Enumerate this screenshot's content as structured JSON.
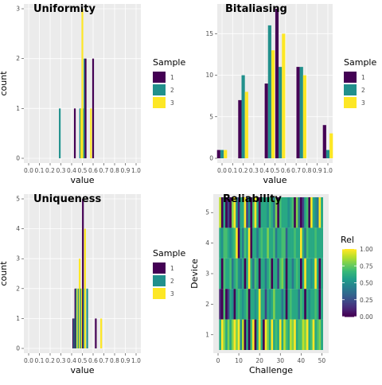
{
  "colors": {
    "panel_bg": "#ebebeb",
    "grid_major": "#ffffff",
    "grid_minor": "#f5f5f5",
    "axis_text": "#4d4d4d",
    "title_text": "#000000",
    "sample_1": "#440154",
    "sample_2": "#21908c",
    "sample_3": "#fde725"
  },
  "chart_data": [
    {
      "id": "uniformity",
      "type": "bar",
      "title": "Uniformity",
      "xlabel": "value",
      "ylabel": "count",
      "xlim": [
        0,
        1
      ],
      "ylim": [
        0,
        3
      ],
      "xticks": [
        "0.0",
        "0.1",
        "0.2",
        "0.3",
        "0.4",
        "0.5",
        "0.6",
        "0.7",
        "0.8",
        "0.9",
        "1.0"
      ],
      "yticks": [
        "0",
        "1",
        "2",
        "3"
      ],
      "bin_width": 0.0333,
      "legend": {
        "title": "Sample",
        "items": [
          "1",
          "2",
          "3"
        ]
      },
      "bars": [
        {
          "sample": 2,
          "x": 0.29,
          "count": 1
        },
        {
          "sample": 1,
          "x": 0.43,
          "count": 1
        },
        {
          "sample": 2,
          "x": 0.48,
          "count": 1
        },
        {
          "sample": 3,
          "x": 0.49,
          "count": 1
        },
        {
          "sample": 2,
          "x": 0.51,
          "count": 1
        },
        {
          "sample": 3,
          "x": 0.5,
          "count": 3
        },
        {
          "sample": 2,
          "x": 0.52,
          "count": 2
        },
        {
          "sample": 1,
          "x": 0.53,
          "count": 2
        },
        {
          "sample": 3,
          "x": 0.58,
          "count": 1
        },
        {
          "sample": 1,
          "x": 0.6,
          "count": 2
        }
      ]
    },
    {
      "id": "bitaliasing",
      "type": "bar",
      "title": "Bitaliasing",
      "xlabel": "value",
      "ylabel": "",
      "xlim": [
        0,
        1
      ],
      "ylim": [
        0,
        18
      ],
      "xticks": [
        "0.0",
        "0.1",
        "0.2",
        "0.3",
        "0.4",
        "0.5",
        "0.6",
        "0.7",
        "0.8",
        "0.9",
        "1.0"
      ],
      "yticks": [
        "0",
        "5",
        "10",
        "15"
      ],
      "legend": {
        "title": "Sample",
        "items": [
          "1",
          "2",
          "3"
        ]
      },
      "groups": [
        {
          "x": 0.0,
          "values": [
            1,
            1,
            1
          ]
        },
        {
          "x": 0.2,
          "values": [
            7,
            10,
            8
          ]
        },
        {
          "x": 0.45,
          "values": [
            9,
            16,
            13
          ]
        },
        {
          "x": 0.55,
          "values": [
            18,
            11,
            15
          ]
        },
        {
          "x": 0.75,
          "values": [
            11,
            11,
            10
          ]
        },
        {
          "x": 1.0,
          "values": [
            4,
            1,
            3
          ]
        }
      ]
    },
    {
      "id": "uniqueness",
      "type": "bar",
      "title": "Uniqueness",
      "xlabel": "value",
      "ylabel": "count",
      "xlim": [
        0,
        1
      ],
      "ylim": [
        0,
        5
      ],
      "xticks": [
        "0.0",
        "0.1",
        "0.2",
        "0.3",
        "0.4",
        "0.5",
        "0.6",
        "0.7",
        "0.8",
        "0.9",
        "1.0"
      ],
      "yticks": [
        "0",
        "1",
        "2",
        "3",
        "4",
        "5"
      ],
      "legend": {
        "title": "Sample",
        "items": [
          "1",
          "2",
          "3"
        ]
      },
      "bars": [
        {
          "sample": 1,
          "x": 0.415,
          "count": 1
        },
        {
          "sample": 2,
          "x": 0.425,
          "count": 1
        },
        {
          "sample": 1,
          "x": 0.435,
          "count": 2
        },
        {
          "sample": 2,
          "x": 0.445,
          "count": 2
        },
        {
          "sample": 3,
          "x": 0.455,
          "count": 2
        },
        {
          "sample": 2,
          "x": 0.465,
          "count": 2
        },
        {
          "sample": 3,
          "x": 0.475,
          "count": 3
        },
        {
          "sample": 2,
          "x": 0.485,
          "count": 2
        },
        {
          "sample": 3,
          "x": 0.495,
          "count": 2
        },
        {
          "sample": 1,
          "x": 0.505,
          "count": 5
        },
        {
          "sample": 2,
          "x": 0.515,
          "count": 2
        },
        {
          "sample": 3,
          "x": 0.525,
          "count": 4
        },
        {
          "sample": 2,
          "x": 0.545,
          "count": 2
        },
        {
          "sample": 1,
          "x": 0.625,
          "count": 1
        },
        {
          "sample": 3,
          "x": 0.675,
          "count": 1
        }
      ]
    },
    {
      "id": "reliability",
      "type": "heatmap",
      "title": "Reliability",
      "xlabel": "Challenge",
      "ylabel": "Device",
      "xlim": [
        0,
        51
      ],
      "ylim": [
        0.5,
        5.5
      ],
      "xticks": [
        "0",
        "10",
        "20",
        "30",
        "40",
        "50"
      ],
      "yticks": [
        "1",
        "2",
        "3",
        "4",
        "5"
      ],
      "legend": {
        "title": "Rel",
        "ticks": [
          "1.00",
          "0.75",
          "0.50",
          "0.25",
          "0.00"
        ]
      },
      "columns": 50,
      "rows": [
        {
          "device": 5,
          "values": [
            0.9,
            0.0,
            0.6,
            0.0,
            0.2,
            0.0,
            0.8,
            1.0,
            0.5,
            0.1,
            0.6,
            0.6,
            1.0,
            0.2,
            0.5,
            0.0,
            0.7,
            1.0,
            0.6,
            0.0,
            0.6,
            0.6,
            0.6,
            0.5,
            0.7,
            0.6,
            0.4,
            0.8,
            0.0,
            0.7,
            0.6,
            0.6,
            0.6,
            0.5,
            0.6,
            0.7,
            0.0,
            0.8,
            0.4,
            0.0,
            0.2,
            0.6,
            0.7,
            0.0,
            1.0,
            0.6,
            0.5,
            0.4,
            1.0,
            0.6
          ]
        },
        {
          "device": 4,
          "values": [
            0.6,
            0.5,
            0.7,
            0.7,
            0.6,
            0.5,
            0.6,
            0.7,
            1.0,
            0.0,
            0.6,
            0.4,
            0.7,
            0.6,
            1.0,
            0.0,
            0.6,
            0.6,
            0.4,
            0.6,
            0.7,
            0.6,
            0.6,
            0.8,
            0.6,
            0.6,
            0.7,
            0.4,
            0.6,
            0.6,
            0.7,
            0.7,
            0.3,
            0.6,
            0.6,
            0.6,
            0.7,
            0.6,
            0.6,
            1.0,
            0.6,
            0.4,
            0.7,
            0.6,
            0.6,
            0.6,
            0.7,
            0.6,
            0.6,
            0.6
          ]
        },
        {
          "device": 3,
          "values": [
            0.6,
            0.0,
            0.7,
            0.6,
            0.6,
            0.7,
            0.4,
            0.6,
            0.7,
            0.5,
            0.4,
            0.6,
            0.0,
            0.6,
            1.0,
            0.6,
            0.4,
            0.7,
            0.6,
            0.0,
            0.6,
            0.6,
            0.4,
            0.6,
            0.7,
            0.0,
            0.6,
            0.6,
            0.2,
            0.7,
            0.8,
            0.6,
            0.0,
            0.6,
            0.6,
            0.4,
            0.6,
            0.7,
            0.6,
            0.0,
            0.6,
            1.0,
            0.6,
            0.6,
            0.5,
            0.6,
            1.0,
            0.6,
            0.0,
            0.6
          ]
        },
        {
          "device": 2,
          "values": [
            0.1,
            0.0,
            0.7,
            0.0,
            0.2,
            0.6,
            0.5,
            0.0,
            0.6,
            0.7,
            0.6,
            0.5,
            0.6,
            0.7,
            0.0,
            0.6,
            0.6,
            0.5,
            0.6,
            1.0,
            0.6,
            0.6,
            0.2,
            0.6,
            0.5,
            0.6,
            0.8,
            0.6,
            0.6,
            0.6,
            0.4,
            0.6,
            0.0,
            0.6,
            0.7,
            0.6,
            0.6,
            0.6,
            0.4,
            0.7,
            0.6,
            0.0,
            0.6,
            0.5,
            0.6,
            0.6,
            0.7,
            0.6,
            0.0,
            0.6
          ]
        },
        {
          "device": 1,
          "values": [
            0.6,
            1.0,
            0.8,
            0.6,
            0.8,
            0.6,
            0.8,
            1.0,
            0.8,
            1.0,
            0.5,
            0.9,
            0.0,
            0.6,
            0.0,
            0.7,
            1.0,
            0.0,
            0.6,
            1.0,
            0.6,
            0.0,
            1.0,
            0.8,
            0.6,
            1.0,
            0.6,
            0.7,
            0.6,
            1.0,
            0.6,
            0.9,
            0.7,
            0.6,
            0.9,
            0.8,
            1.0,
            0.6,
            0.7,
            0.7,
            0.9,
            0.8,
            1.0,
            0.6,
            0.7,
            1.0,
            0.6,
            0.7,
            0.8,
            0.6
          ]
        }
      ]
    }
  ]
}
